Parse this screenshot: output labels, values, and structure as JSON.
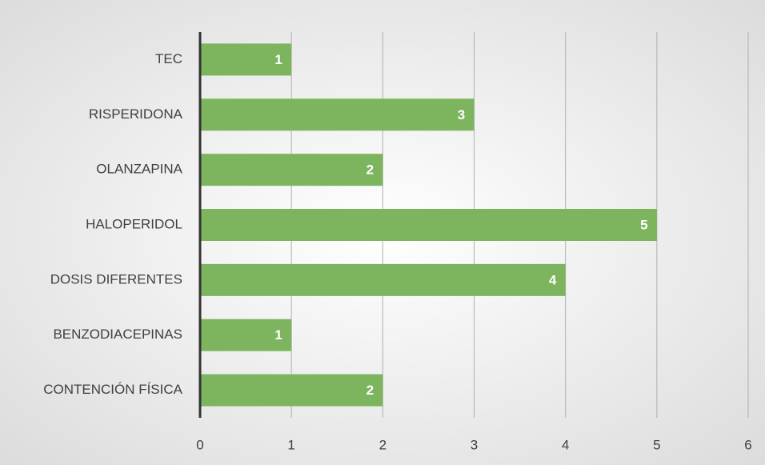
{
  "chart_data": {
    "type": "bar",
    "orientation": "horizontal",
    "categories": [
      "TEC",
      "RISPERIDONA",
      "OLANZAPINA",
      "HALOPERIDOL",
      "DOSIS DIFERENTES",
      "BENZODIACEPINAS",
      "CONTENCIÓN FÍSICA"
    ],
    "values": [
      1,
      3,
      2,
      5,
      4,
      1,
      2
    ],
    "color": "#7db55f",
    "xlim": [
      0,
      6
    ],
    "xticks": [
      0,
      1,
      2,
      3,
      4,
      5,
      6
    ],
    "grid": true
  }
}
